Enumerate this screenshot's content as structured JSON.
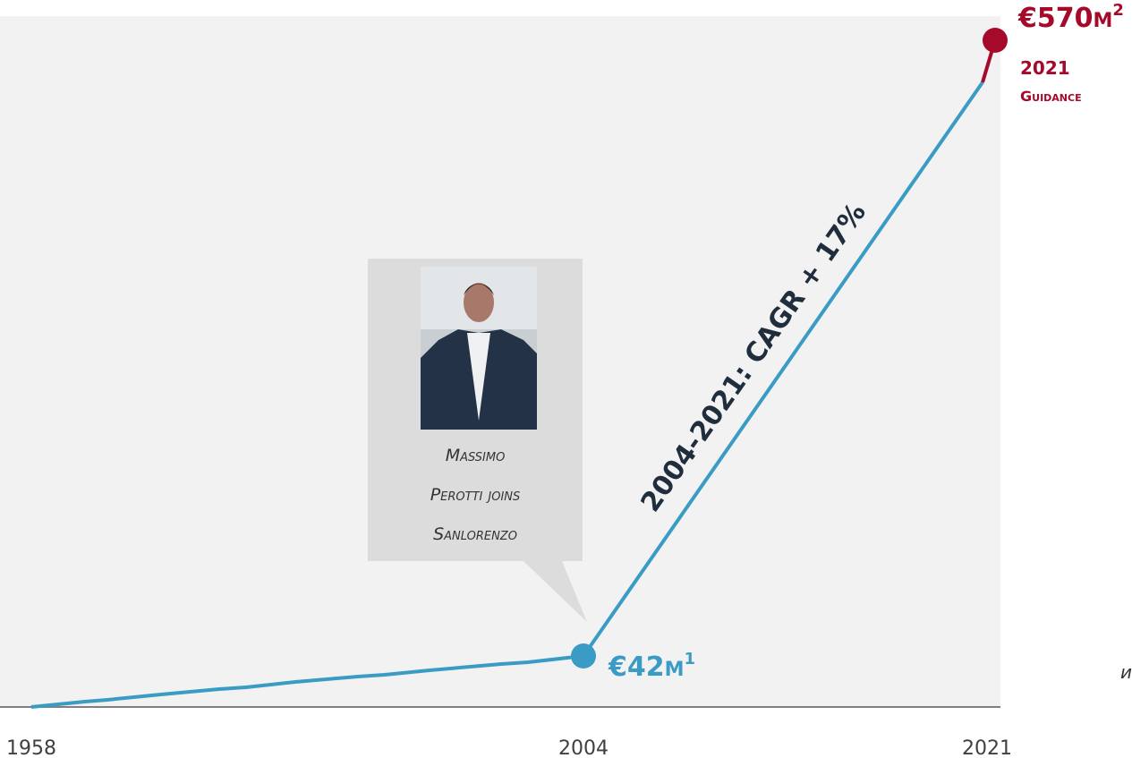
{
  "milestones": {
    "start_year": "1958",
    "join_year": "2004",
    "end_year": "2021",
    "join_value": {
      "amount": "€42",
      "unit": "M",
      "note": "1"
    },
    "end_value": {
      "amount": "€570",
      "unit": "M",
      "note": "2"
    },
    "guidance": [
      "2021",
      "Guidance"
    ],
    "cagr": "2004-2021: CAGR + 17%",
    "callout": [
      "Massimo",
      "Perotti joins",
      "Sanlorenzo"
    ],
    "edge_text": "и"
  }
}
